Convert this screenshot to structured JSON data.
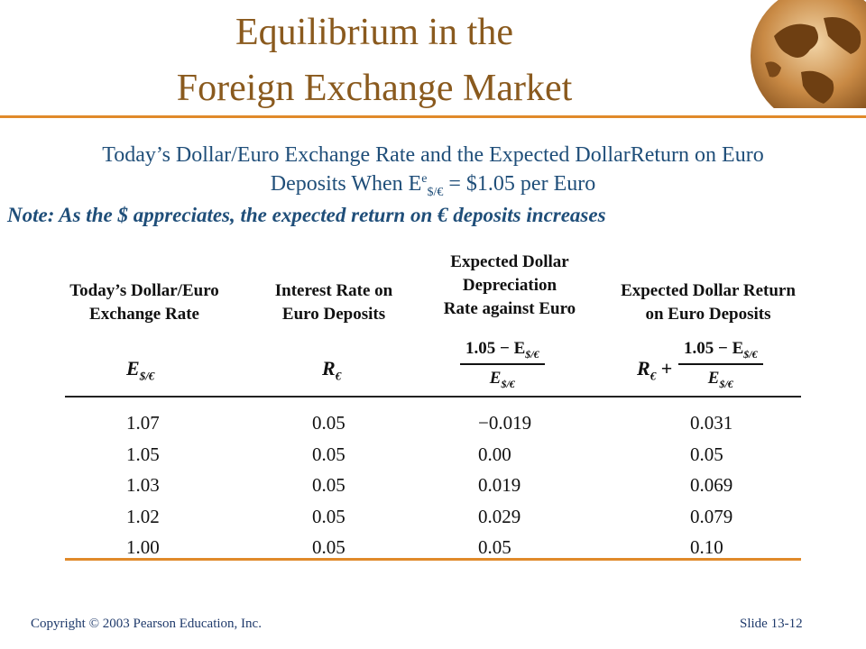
{
  "title": {
    "line1": "Equilibrium in the",
    "line2": "Foreign Exchange Market"
  },
  "subtitle": {
    "line1": "Today’s Dollar/Euro Exchange Rate and the Expected DollarReturn on Euro",
    "line2_prefix": "Deposits When E",
    "line2_sup": "e",
    "line2_sub": "$/€",
    "line2_suffix": " = $1.05 per Euro"
  },
  "note": "Note: As the $ appreciates, the expected return on € deposits increases",
  "table": {
    "headers": [
      [
        "Today’s Dollar/Euro",
        "Exchange Rate"
      ],
      [
        "Interest Rate on",
        "Euro Deposits"
      ],
      [
        "Expected Dollar",
        "Depreciation",
        "Rate against Euro"
      ],
      [
        "Expected Dollar Return",
        "on Euro Deposits"
      ]
    ],
    "symbols": {
      "col1": "E",
      "col1_sub": "$/€",
      "col2": "R",
      "col2_sub": "€",
      "col3_num": "1.05 − E",
      "col3_num_sub": "$/€",
      "col3_den": "E",
      "col3_den_sub": "$/€",
      "col4_prefix": "R",
      "col4_prefix_sub": "€",
      "col4_plus": " +",
      "col4_num": "1.05 − E",
      "col4_num_sub": "$/€",
      "col4_den": "E",
      "col4_den_sub": "$/€"
    },
    "rows": [
      [
        "1.07",
        "0.05",
        "−0.019",
        "0.031"
      ],
      [
        "1.05",
        "0.05",
        "0.00",
        "0.05"
      ],
      [
        "1.03",
        "0.05",
        "0.019",
        "0.069"
      ],
      [
        "1.02",
        "0.05",
        "0.029",
        "0.079"
      ],
      [
        "1.00",
        "0.05",
        "0.05",
        "0.10"
      ]
    ]
  },
  "footer": {
    "copyright": "Copyright © 2003 Pearson Education, Inc.",
    "slide": "Slide 13-12"
  },
  "colors": {
    "title": "#8a5a1e",
    "accent": "#e08a2a",
    "text_blue": "#1f4e79"
  },
  "icons": {
    "logo": "globe-icon"
  }
}
